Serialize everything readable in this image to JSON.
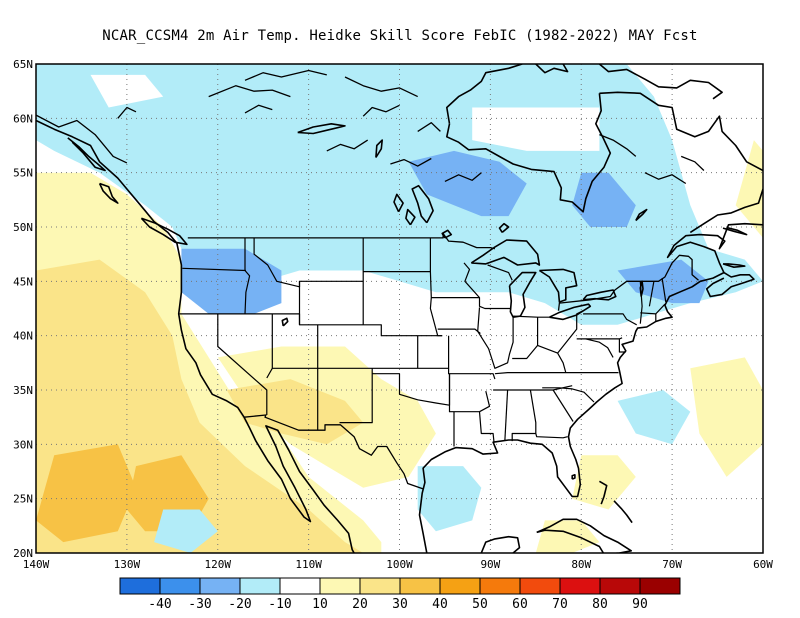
{
  "title": "NCAR_CCSM4  2m Air Temp. Heidke Skill Score FebIC (1982-2022) MAY Fcst",
  "map": {
    "lon_range": [
      -140,
      -60
    ],
    "lat_range": [
      20,
      65
    ],
    "lat_ticks": [
      {
        "value": 65,
        "label": "65N"
      },
      {
        "value": 60,
        "label": "60N"
      },
      {
        "value": 55,
        "label": "55N"
      },
      {
        "value": 50,
        "label": "50N"
      },
      {
        "value": 45,
        "label": "45N"
      },
      {
        "value": 40,
        "label": "40N"
      },
      {
        "value": 35,
        "label": "35N"
      },
      {
        "value": 30,
        "label": "30N"
      },
      {
        "value": 25,
        "label": "25N"
      },
      {
        "value": 20,
        "label": "20N"
      }
    ],
    "lon_ticks": [
      {
        "value": -140,
        "label": "140W"
      },
      {
        "value": -130,
        "label": "130W"
      },
      {
        "value": -120,
        "label": "120W"
      },
      {
        "value": -110,
        "label": "110W"
      },
      {
        "value": -100,
        "label": "100W"
      },
      {
        "value": -90,
        "label": "90W"
      },
      {
        "value": -80,
        "label": "80W"
      },
      {
        "value": -70,
        "label": "70W"
      },
      {
        "value": -60,
        "label": "60W"
      }
    ],
    "grid": "dotted",
    "skill_regions": [
      {
        "level": -20,
        "pts": [
          [
            -136,
            62
          ],
          [
            -128,
            63
          ],
          [
            -118,
            63
          ],
          [
            -112,
            62
          ],
          [
            -106,
            61
          ],
          [
            -103,
            62
          ],
          [
            -99,
            61
          ],
          [
            -96,
            58
          ],
          [
            -96,
            55
          ],
          [
            -99,
            54
          ],
          [
            -103,
            55
          ],
          [
            -108,
            55
          ],
          [
            -114,
            56
          ],
          [
            -122,
            57
          ],
          [
            -128,
            58
          ],
          [
            -134,
            60
          ]
        ]
      },
      {
        "level": -10,
        "pts": [
          [
            -140,
            65
          ],
          [
            -75,
            65
          ],
          [
            -72,
            62
          ],
          [
            -70,
            58
          ],
          [
            -68,
            52
          ],
          [
            -66,
            48
          ],
          [
            -62,
            47
          ],
          [
            -60,
            45
          ],
          [
            -63,
            44
          ],
          [
            -68,
            43
          ],
          [
            -72,
            42
          ],
          [
            -76,
            41
          ],
          [
            -80,
            41
          ],
          [
            -84,
            43
          ],
          [
            -88,
            44
          ],
          [
            -92,
            44
          ],
          [
            -96,
            44
          ],
          [
            -100,
            45
          ],
          [
            -104,
            46
          ],
          [
            -108,
            46
          ],
          [
            -111,
            46
          ],
          [
            -115,
            45
          ],
          [
            -117,
            43
          ],
          [
            -121,
            43
          ],
          [
            -123,
            46
          ],
          [
            -125,
            50
          ],
          [
            -128,
            52
          ],
          [
            -133,
            55
          ],
          [
            -138,
            57
          ],
          [
            -140,
            58
          ]
        ]
      },
      {
        "level": -20,
        "pts": [
          [
            -99,
            56
          ],
          [
            -94,
            57
          ],
          [
            -89,
            56
          ],
          [
            -86,
            54
          ],
          [
            -88,
            51
          ],
          [
            -91,
            51
          ],
          [
            -94,
            52
          ],
          [
            -97,
            53
          ]
        ]
      },
      {
        "level": -20,
        "pts": [
          [
            -124,
            48
          ],
          [
            -117,
            48
          ],
          [
            -113,
            46
          ],
          [
            -113,
            43
          ],
          [
            -116,
            42
          ],
          [
            -121,
            42
          ],
          [
            -124,
            44
          ]
        ]
      },
      {
        "level": -20,
        "pts": [
          [
            -80,
            55
          ],
          [
            -77,
            55
          ],
          [
            -74,
            52
          ],
          [
            -75,
            50
          ],
          [
            -79,
            50
          ],
          [
            -81,
            52
          ]
        ]
      },
      {
        "level": -20,
        "pts": [
          [
            -76,
            46
          ],
          [
            -69,
            47
          ],
          [
            -66,
            45
          ],
          [
            -67,
            43
          ],
          [
            -70,
            43
          ],
          [
            -74,
            44
          ]
        ]
      },
      {
        "level": 10,
        "pts": [
          [
            -140,
            55
          ],
          [
            -134,
            55
          ],
          [
            -130,
            53
          ],
          [
            -126,
            50
          ],
          [
            -124,
            47
          ],
          [
            -124,
            42
          ],
          [
            -121,
            38
          ],
          [
            -118,
            34
          ],
          [
            -114,
            32
          ],
          [
            -110,
            27
          ],
          [
            -104,
            23
          ],
          [
            -102,
            21
          ],
          [
            -102,
            20
          ],
          [
            -140,
            20
          ]
        ]
      },
      {
        "level": 20,
        "pts": [
          [
            -140,
            46
          ],
          [
            -133,
            47
          ],
          [
            -128,
            44
          ],
          [
            -125,
            40
          ],
          [
            -124,
            36
          ],
          [
            -122,
            32
          ],
          [
            -117,
            28
          ],
          [
            -110,
            24
          ],
          [
            -106,
            21
          ],
          [
            -104,
            20
          ],
          [
            -140,
            20
          ]
        ]
      },
      {
        "level": 30,
        "pts": [
          [
            -138,
            29
          ],
          [
            -131,
            30
          ],
          [
            -129,
            26
          ],
          [
            -131,
            22
          ],
          [
            -137,
            21
          ],
          [
            -140,
            23
          ]
        ]
      },
      {
        "level": 30,
        "pts": [
          [
            -129,
            28
          ],
          [
            -124,
            29
          ],
          [
            -121,
            25
          ],
          [
            -123,
            22
          ],
          [
            -128,
            22
          ],
          [
            -130,
            24
          ]
        ]
      },
      {
        "level": 10,
        "pts": [
          [
            -120,
            38
          ],
          [
            -113,
            39
          ],
          [
            -106,
            39
          ],
          [
            -102,
            36
          ],
          [
            -98,
            34
          ],
          [
            -96,
            31
          ],
          [
            -99,
            27
          ],
          [
            -104,
            26
          ],
          [
            -108,
            28
          ],
          [
            -112,
            30
          ],
          [
            -116,
            33
          ]
        ]
      },
      {
        "level": 20,
        "pts": [
          [
            -119,
            35
          ],
          [
            -112,
            36
          ],
          [
            -106,
            34
          ],
          [
            -104,
            32
          ],
          [
            -108,
            30
          ],
          [
            -113,
            31
          ],
          [
            -117,
            32
          ]
        ]
      },
      {
        "level": 10,
        "pts": [
          [
            -80,
            29
          ],
          [
            -76,
            29
          ],
          [
            -74,
            27
          ],
          [
            -77,
            24
          ],
          [
            -81,
            25
          ]
        ]
      },
      {
        "level": 10,
        "pts": [
          [
            -68,
            37
          ],
          [
            -62,
            38
          ],
          [
            -60,
            35
          ],
          [
            -60,
            30
          ],
          [
            -64,
            27
          ],
          [
            -67,
            31
          ]
        ]
      },
      {
        "level": 10,
        "pts": [
          [
            -84,
            23
          ],
          [
            -80,
            23
          ],
          [
            -78,
            21
          ],
          [
            -81,
            20
          ],
          [
            -85,
            20
          ]
        ]
      },
      {
        "level": -10,
        "pts": [
          [
            -98,
            28
          ],
          [
            -93,
            28
          ],
          [
            -91,
            26
          ],
          [
            -92,
            23
          ],
          [
            -96,
            22
          ],
          [
            -98,
            24
          ]
        ]
      },
      {
        "level": -10,
        "pts": [
          [
            -76,
            34
          ],
          [
            -71,
            35
          ],
          [
            -68,
            33
          ],
          [
            -70,
            30
          ],
          [
            -74,
            31
          ]
        ]
      },
      {
        "level": 10,
        "pts": [
          [
            -61,
            58
          ],
          [
            -60,
            57
          ],
          [
            -60,
            49
          ],
          [
            -63,
            52
          ]
        ]
      },
      {
        "level": -10,
        "pts": [
          [
            -126,
            24
          ],
          [
            -122,
            24
          ],
          [
            -120,
            22
          ],
          [
            -123,
            20
          ],
          [
            -127,
            21
          ]
        ]
      }
    ],
    "blank_regions": [
      {
        "pts": [
          [
            -92,
            61
          ],
          [
            -78,
            61
          ],
          [
            -78,
            57
          ],
          [
            -86,
            57
          ],
          [
            -92,
            58
          ]
        ]
      },
      {
        "pts": [
          [
            -134,
            64
          ],
          [
            -128,
            64
          ],
          [
            -126,
            62
          ],
          [
            -132,
            61
          ]
        ]
      }
    ]
  },
  "colorbar": {
    "colors": [
      "#1e6edc",
      "#3c90ec",
      "#76b2f4",
      "#b2ecf8",
      "#ffffff",
      "#fdf8b4",
      "#fae489",
      "#f7c245",
      "#f5a114",
      "#f57a0c",
      "#f24b0d",
      "#dc1010",
      "#b80808",
      "#9a0000"
    ],
    "labels": [
      "-40",
      "-30",
      "-20",
      "-10",
      "10",
      "20",
      "30",
      "40",
      "50",
      "60",
      "70",
      "80",
      "90"
    ]
  },
  "level_colors": {
    "-40": "#1e6edc",
    "-30": "#3c90ec",
    "-20": "#76b2f4",
    "-10": "#b2ecf8",
    "10": "#fdf8b4",
    "20": "#fae489",
    "30": "#f7c245"
  }
}
